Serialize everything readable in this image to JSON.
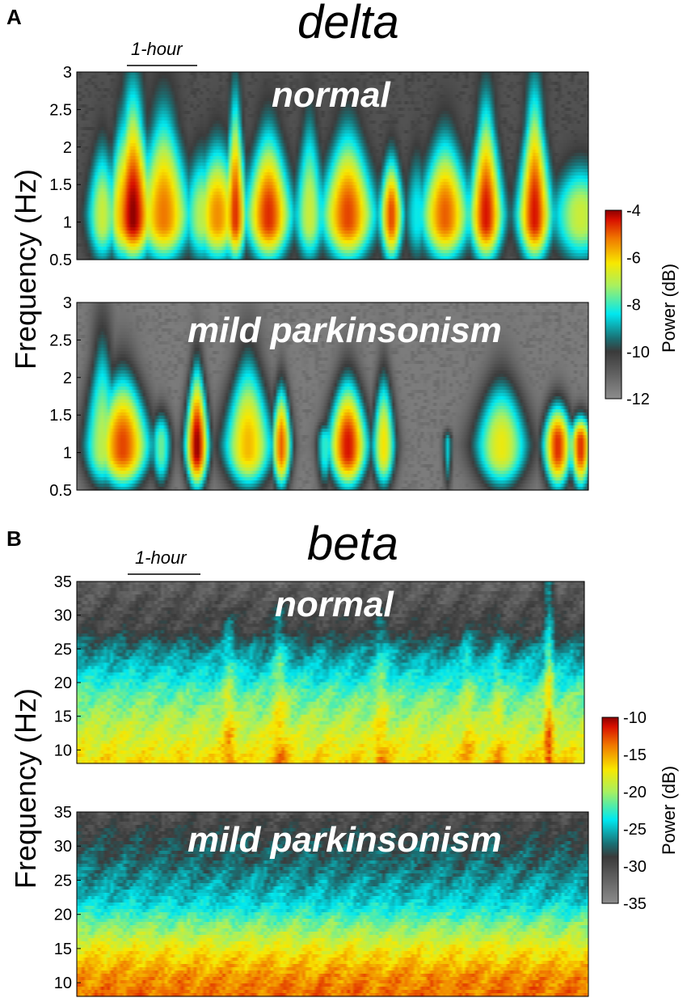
{
  "chart_data": [
    {
      "type": "heatmap",
      "panel": "A",
      "title": "delta",
      "scale_bar_label": "1-hour",
      "ylabel": "Frequency (Hz)",
      "yticks": [
        "0.5",
        "1",
        "1.5",
        "2",
        "2.5",
        "3"
      ],
      "ylim": [
        0.5,
        3
      ],
      "colorbar": {
        "label": "Power (dB)",
        "ticks": [
          "-12",
          "-10",
          "-8",
          "-6",
          "-4"
        ],
        "range": [
          -12,
          -4
        ]
      },
      "conditions": [
        {
          "name": "normal",
          "background_db": -10.6,
          "bursts": [
            {
              "t": 0.05,
              "w": 0.016,
              "peak": -6.8,
              "top": 2.2
            },
            {
              "t": 0.09,
              "w": 0.016,
              "peak": -5.6,
              "top": 2.6
            },
            {
              "t": 0.11,
              "w": 0.022,
              "peak": -4.0,
              "top": 3.0
            },
            {
              "t": 0.17,
              "w": 0.028,
              "peak": -5.2,
              "top": 2.7
            },
            {
              "t": 0.245,
              "w": 0.02,
              "peak": -7.0,
              "top": 2.1
            },
            {
              "t": 0.275,
              "w": 0.024,
              "peak": -5.4,
              "top": 2.2
            },
            {
              "t": 0.31,
              "w": 0.012,
              "peak": -4.6,
              "top": 2.9
            },
            {
              "t": 0.375,
              "w": 0.024,
              "peak": -4.6,
              "top": 2.4
            },
            {
              "t": 0.455,
              "w": 0.016,
              "peak": -6.8,
              "top": 2.6
            },
            {
              "t": 0.53,
              "w": 0.028,
              "peak": -4.8,
              "top": 2.4
            },
            {
              "t": 0.615,
              "w": 0.012,
              "peak": -4.8,
              "top": 2.0
            },
            {
              "t": 0.665,
              "w": 0.013,
              "peak": -8.3,
              "top": 2.1
            },
            {
              "t": 0.72,
              "w": 0.026,
              "peak": -5.0,
              "top": 2.3
            },
            {
              "t": 0.8,
              "w": 0.018,
              "peak": -4.4,
              "top": 2.8
            },
            {
              "t": 0.895,
              "w": 0.018,
              "peak": -4.4,
              "top": 3.0
            },
            {
              "t": 0.985,
              "w": 0.03,
              "peak": -6.8,
              "top": 1.9
            }
          ]
        },
        {
          "name": "mild parkinsonism",
          "background_db": -11.6,
          "bursts": [
            {
              "t": 0.05,
              "w": 0.022,
              "peak": -7.0,
              "top": 3.0
            },
            {
              "t": 0.09,
              "w": 0.03,
              "peak": -4.8,
              "top": 2.3
            },
            {
              "t": 0.165,
              "w": 0.012,
              "peak": -7.6,
              "top": 1.7
            },
            {
              "t": 0.235,
              "w": 0.013,
              "peak": -4.0,
              "top": 2.4
            },
            {
              "t": 0.335,
              "w": 0.028,
              "peak": -5.8,
              "top": 2.6
            },
            {
              "t": 0.4,
              "w": 0.011,
              "peak": -5.0,
              "top": 2.1
            },
            {
              "t": 0.485,
              "w": 0.009,
              "peak": -8.0,
              "top": 1.5
            },
            {
              "t": 0.53,
              "w": 0.022,
              "peak": -4.4,
              "top": 2.2
            },
            {
              "t": 0.6,
              "w": 0.013,
              "peak": -6.2,
              "top": 2.3
            },
            {
              "t": 0.725,
              "w": 0.005,
              "peak": -8.6,
              "top": 1.2
            },
            {
              "t": 0.83,
              "w": 0.03,
              "peak": -6.4,
              "top": 2.2
            },
            {
              "t": 0.94,
              "w": 0.016,
              "peak": -4.6,
              "top": 1.8
            },
            {
              "t": 0.985,
              "w": 0.012,
              "peak": -4.6,
              "top": 1.6
            }
          ]
        }
      ]
    },
    {
      "type": "heatmap",
      "panel": "B",
      "title": "beta",
      "scale_bar_label": "1-hour",
      "ylabel": "Frequency (Hz)",
      "yticks": [
        "10",
        "15",
        "20",
        "25",
        "30",
        "35"
      ],
      "ylim": [
        8,
        35
      ],
      "colorbar": {
        "label": "Power (dB)",
        "ticks": [
          "-35",
          "-30",
          "-25",
          "-20",
          "-15",
          "-10"
        ],
        "range": [
          -35,
          -10
        ]
      },
      "conditions": [
        {
          "name": "normal",
          "profile_db": {
            "freq": [
              8,
              12,
              18,
              22,
              25,
              28,
              35
            ],
            "power": [
              -16.5,
              -18.5,
              -21.5,
              -24.5,
              -26.5,
              -29.5,
              -31.5
            ]
          },
          "bursts": [
            {
              "t": 0.3,
              "w": 0.012,
              "gain": 3.0,
              "top": 29
            },
            {
              "t": 0.4,
              "w": 0.014,
              "gain": 3.0,
              "top": 30
            },
            {
              "t": 0.6,
              "w": 0.014,
              "gain": 2.5,
              "top": 29
            },
            {
              "t": 0.77,
              "w": 0.012,
              "gain": 2.0,
              "top": 28
            },
            {
              "t": 0.83,
              "w": 0.01,
              "gain": 2.0,
              "top": 29
            },
            {
              "t": 0.93,
              "w": 0.009,
              "gain": 5.0,
              "top": 35
            }
          ]
        },
        {
          "name": "mild parkinsonism",
          "profile_db": {
            "freq": [
              8,
              11,
              15,
              18,
              22,
              27,
              31,
              35
            ],
            "power": [
              -13.5,
              -14.5,
              -17.5,
              -20.5,
              -24.5,
              -27.0,
              -28.5,
              -30.5
            ]
          },
          "bursts": []
        }
      ]
    }
  ]
}
